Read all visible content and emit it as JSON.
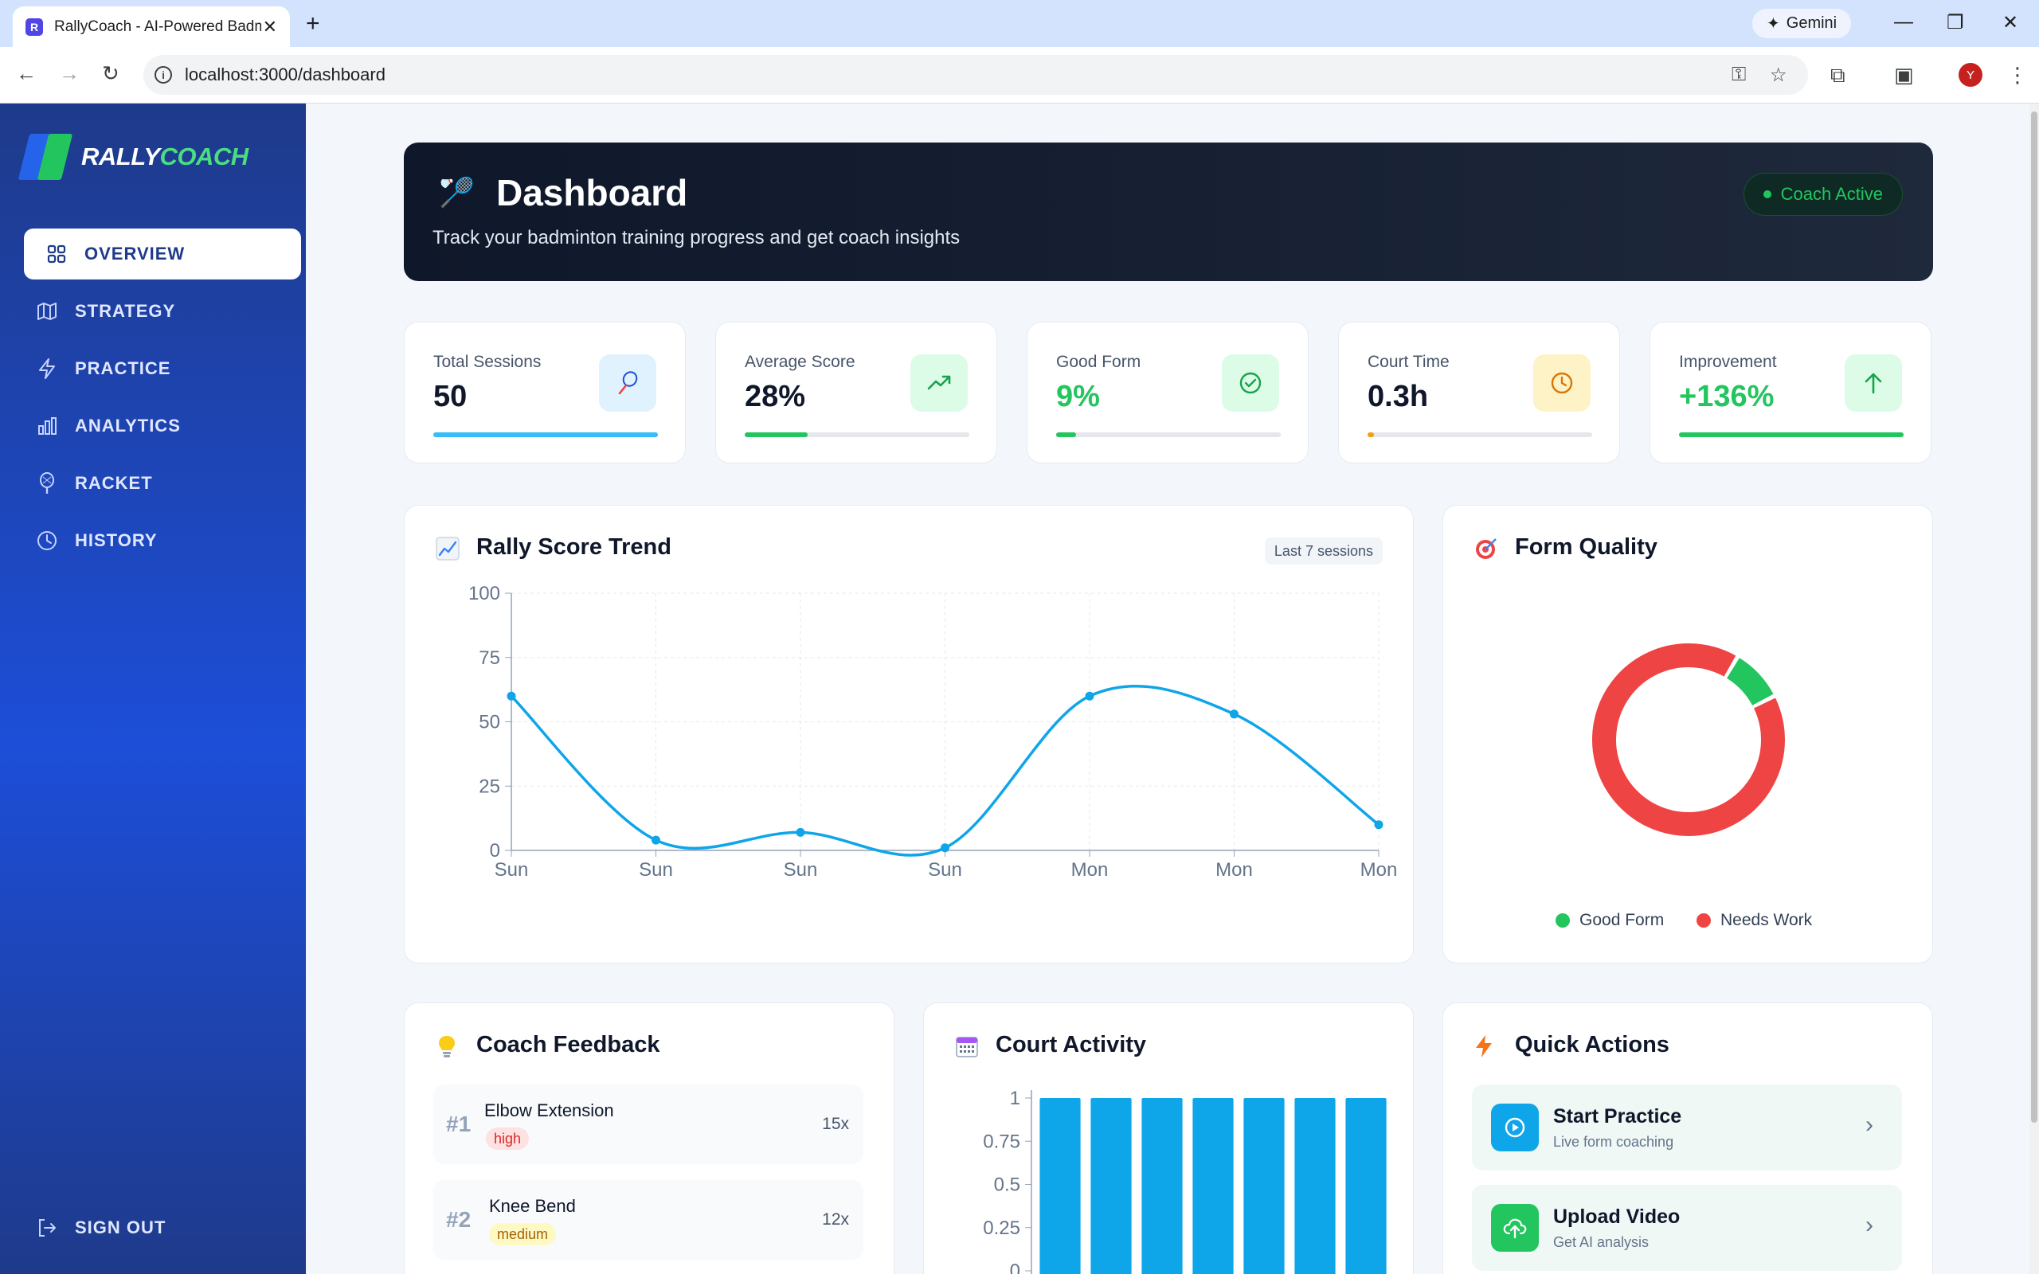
{
  "browser": {
    "tab_title": "RallyCoach - AI-Powered Badminton Coach",
    "favicon_letter": "R",
    "url": "localhost:3000/dashboard",
    "gemini_label": "Gemini",
    "profile_initial": "Y"
  },
  "sidebar": {
    "logo_rally": "RALLY",
    "logo_coach": "COACH",
    "items": [
      {
        "label": "OVERVIEW",
        "icon": "grid-icon",
        "active": true
      },
      {
        "label": "STRATEGY",
        "icon": "map-icon",
        "active": false
      },
      {
        "label": "PRACTICE",
        "icon": "lightning-icon",
        "active": false
      },
      {
        "label": "ANALYTICS",
        "icon": "bar-chart-icon",
        "active": false
      },
      {
        "label": "RACKET",
        "icon": "racket-icon",
        "active": false
      },
      {
        "label": "HISTORY",
        "icon": "clock-icon",
        "active": false
      }
    ],
    "signout": "SIGN OUT"
  },
  "hero": {
    "title": "Dashboard",
    "subtitle": "Track your badminton training progress and get coach insights",
    "badge": "Coach Active"
  },
  "stats": [
    {
      "label": "Total Sessions",
      "value": "50",
      "icon": "racket-icon",
      "progress": 1.0,
      "color": "#38bdf8",
      "value_color": "#0f172a",
      "icon_bg": "#e0f2fe"
    },
    {
      "label": "Average Score",
      "value": "28%",
      "icon": "trending-up-icon",
      "progress": 0.28,
      "color": "#22c55e",
      "value_color": "#0f172a",
      "icon_bg": "#dcfce7"
    },
    {
      "label": "Good Form",
      "value": "9%",
      "icon": "check-circle-icon",
      "progress": 0.09,
      "color": "#22c55e",
      "value_color": "#22c55e",
      "icon_bg": "#dcfce7"
    },
    {
      "label": "Court Time",
      "value": "0.3h",
      "icon": "clock-icon",
      "progress": 0.03,
      "color": "#f59e0b",
      "value_color": "#0f172a",
      "icon_bg": "#fef3c7"
    },
    {
      "label": "Improvement",
      "value": "+136%",
      "icon": "arrow-up-icon",
      "progress": 1.0,
      "color": "#22c55e",
      "value_color": "#22c55e",
      "icon_bg": "#dcfce7"
    }
  ],
  "trend": {
    "title": "Rally Score Trend",
    "badge": "Last 7 sessions"
  },
  "form_quality": {
    "title": "Form Quality",
    "legend": [
      {
        "label": "Good Form",
        "color": "#22c55e"
      },
      {
        "label": "Needs Work",
        "color": "#ef4444"
      }
    ]
  },
  "feedback": {
    "title": "Coach Feedback",
    "items": [
      {
        "rank": "#1",
        "name": "Elbow Extension",
        "severity": "high",
        "count": "15x"
      },
      {
        "rank": "#2",
        "name": "Knee Bend",
        "severity": "medium",
        "count": "12x"
      }
    ]
  },
  "court_activity": {
    "title": "Court Activity"
  },
  "quick_actions": {
    "title": "Quick Actions",
    "items": [
      {
        "title": "Start Practice",
        "subtitle": "Live form coaching",
        "icon": "play-icon"
      },
      {
        "title": "Upload Video",
        "subtitle": "Get AI analysis",
        "icon": "upload-icon"
      }
    ]
  },
  "chart_data": [
    {
      "type": "line",
      "x": [
        "Sun",
        "Sun",
        "Sun",
        "Sun",
        "Mon",
        "Mon",
        "Mon"
      ],
      "series": [
        {
          "values": [
            60,
            4,
            7,
            1,
            60,
            53,
            10
          ]
        }
      ],
      "ylim": [
        0,
        100
      ],
      "yticks": [
        0,
        25,
        50,
        75,
        100
      ],
      "grid": true,
      "color": "#0ea5e9"
    },
    {
      "type": "pie",
      "labels": [
        "Good Form",
        "Needs Work"
      ],
      "values": [
        9,
        91
      ],
      "colors": [
        "#22c55e",
        "#ef4444"
      ],
      "donut": true,
      "legend": "bottom"
    },
    {
      "type": "bar",
      "values": [
        1,
        1,
        1,
        1,
        1,
        1,
        1
      ],
      "ylim": [
        0,
        1
      ],
      "yticks": [
        0,
        0.25,
        0.5,
        0.75,
        1
      ],
      "color": "#0ea5e9"
    }
  ]
}
